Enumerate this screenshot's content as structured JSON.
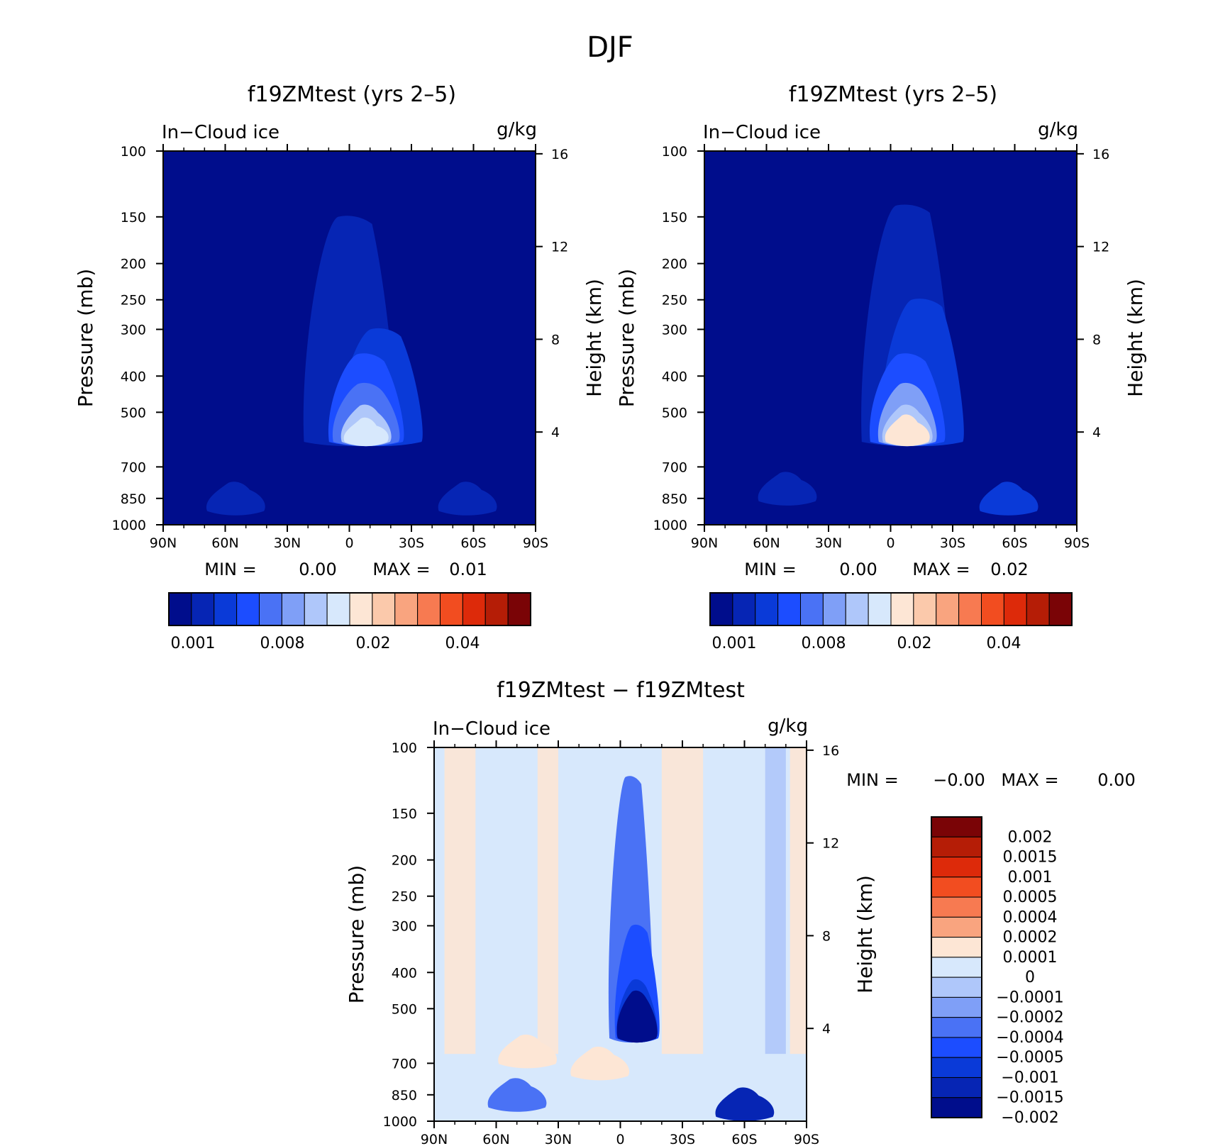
{
  "figure_title": "DJF",
  "chart_data": [
    {
      "type": "heatmap",
      "id": "p1",
      "title": "f19ZMtest (yrs 2–5)",
      "left_label": "In−Cloud ice",
      "right_label": "g/kg",
      "ylabel": "Pressure (mb)",
      "ylabel_right": "Height (km)",
      "x_ticks": [
        "90N",
        "60N",
        "30N",
        "0",
        "30S",
        "60S",
        "90S"
      ],
      "y_ticks": [
        "100",
        "150",
        "200",
        "250",
        "300",
        "400",
        "500",
        "700",
        "850",
        "1000"
      ],
      "y_ticks_right": [
        "16",
        "12",
        "8",
        "4"
      ],
      "stats": {
        "min_label": "MIN =",
        "min": "0.00",
        "max_label": "MAX =",
        "max": "0.01"
      },
      "colorbar": {
        "orientation": "horizontal",
        "labels": [
          "0.001",
          "0.008",
          "0.02",
          "0.04"
        ]
      },
      "blobs": [
        {
          "lat": 0.0,
          "p": 150,
          "level": 1
        },
        {
          "lat": -15.0,
          "p": 300,
          "level": 2
        },
        {
          "lat": -8.0,
          "p": 350,
          "level": 3
        },
        {
          "lat": -8.0,
          "p": 420,
          "level": 4
        },
        {
          "lat": -8.0,
          "p": 480,
          "level": 6
        },
        {
          "lat": -8.0,
          "p": 520,
          "level": 7
        },
        {
          "lat": 55.0,
          "p": 850,
          "level": 1
        },
        {
          "lat": -57.0,
          "p": 850,
          "level": 1
        }
      ]
    },
    {
      "type": "heatmap",
      "id": "p2",
      "title": "f19ZMtest (yrs 2–5)",
      "left_label": "In−Cloud ice",
      "right_label": "g/kg",
      "ylabel": "Pressure (mb)",
      "ylabel_right": "Height (km)",
      "x_ticks": [
        "90N",
        "60N",
        "30N",
        "0",
        "30S",
        "60S",
        "90S"
      ],
      "y_ticks": [
        "100",
        "150",
        "200",
        "250",
        "300",
        "400",
        "500",
        "700",
        "850",
        "1000"
      ],
      "y_ticks_right": [
        "16",
        "12",
        "8",
        "4"
      ],
      "stats": {
        "min_label": "MIN =",
        "min": "0.00",
        "max_label": "MAX =",
        "max": "0.02"
      },
      "colorbar": {
        "orientation": "horizontal",
        "labels": [
          "0.001",
          "0.008",
          "0.02",
          "0.04"
        ]
      },
      "blobs": [
        {
          "lat": -8.0,
          "p": 140,
          "level": 1
        },
        {
          "lat": -15.0,
          "p": 250,
          "level": 2
        },
        {
          "lat": -8.0,
          "p": 350,
          "level": 3
        },
        {
          "lat": -8.0,
          "p": 420,
          "level": 5
        },
        {
          "lat": -8.0,
          "p": 480,
          "level": 6
        },
        {
          "lat": -8.0,
          "p": 510,
          "level": 8
        },
        {
          "lat": 50.0,
          "p": 800,
          "level": 1
        },
        {
          "lat": -57.0,
          "p": 850,
          "level": 2
        }
      ]
    },
    {
      "type": "heatmap",
      "id": "p3",
      "title": "f19ZMtest − f19ZMtest",
      "left_label": "In−Cloud ice",
      "right_label": "g/kg",
      "ylabel": "Pressure (mb)",
      "ylabel_right": "Height (km)",
      "x_ticks": [
        "90N",
        "60N",
        "30N",
        "0",
        "30S",
        "60S",
        "90S"
      ],
      "y_ticks": [
        "100",
        "150",
        "200",
        "250",
        "300",
        "400",
        "500",
        "700",
        "850",
        "1000"
      ],
      "y_ticks_right": [
        "16",
        "12",
        "8",
        "4"
      ],
      "stats": {
        "min_label": "MIN =",
        "min": "−0.00",
        "max_label": "MAX =",
        "max": "0.00"
      },
      "colorbar": {
        "orientation": "vertical",
        "labels": [
          "0.002",
          "0.0015",
          "0.001",
          "0.0005",
          "0.0004",
          "0.0002",
          "0.0001",
          "0",
          "−0.0001",
          "−0.0002",
          "−0.0004",
          "−0.0005",
          "−0.001",
          "−0.0015",
          "−0.002"
        ]
      },
      "blobs": [
        {
          "lat": -5.0,
          "p": 120,
          "level": 11
        },
        {
          "lat": -8.0,
          "p": 300,
          "level": 12
        },
        {
          "lat": -8.0,
          "p": 420,
          "level": 13
        },
        {
          "lat": -8.0,
          "p": 500,
          "level": 14
        },
        {
          "lat": -8.0,
          "p": 450,
          "level": 15
        },
        {
          "lat": 50.0,
          "p": 850,
          "level": 11
        },
        {
          "lat": -60.0,
          "p": 900,
          "level": 14
        },
        {
          "lat": 45.0,
          "p": 650,
          "level": 7
        },
        {
          "lat": 10.0,
          "p": 700,
          "level": 7
        }
      ]
    }
  ],
  "palette": {
    "sequential": [
      "#000d8c",
      "#0625b4",
      "#0a3ad8",
      "#1c4dff",
      "#4a72f5",
      "#7f9ff7",
      "#afc7fa",
      "#d7e8fc",
      "#fde6d5",
      "#fbc9ab",
      "#f9a47f",
      "#f77a51",
      "#f24d20",
      "#dd2a0a",
      "#b51d06",
      "#7a0406"
    ],
    "diverging": [
      "#7a0406",
      "#b51d06",
      "#dd2a0a",
      "#f24d20",
      "#f77a51",
      "#f9a47f",
      "#fde6d5",
      "#d7e8fc",
      "#afc7fa",
      "#7f9ff7",
      "#4a72f5",
      "#1c4dff",
      "#0a3ad8",
      "#0625b4",
      "#000d8c"
    ]
  }
}
